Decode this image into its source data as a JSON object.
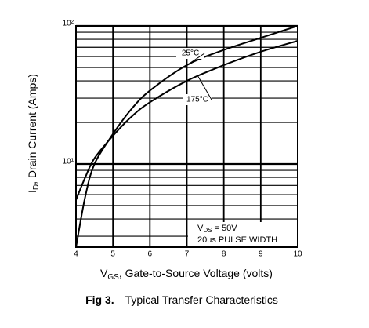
{
  "chart_data": {
    "type": "line",
    "log_y": true,
    "grid": true,
    "xlabel": [
      "V",
      "GS",
      ", Gate-to-Source Voltage (volts)"
    ],
    "ylabel": [
      "I",
      "D",
      ", Drain Current (Amps)"
    ],
    "caption": [
      "Fig 3.",
      "Typical Transfer Characteristics"
    ],
    "note": [
      "V",
      "DS",
      " = 50V",
      "20us PULSE WIDTH"
    ],
    "x": [
      4,
      4.25,
      4.5,
      5,
      5.5,
      6,
      7,
      8,
      9,
      10
    ],
    "series": [
      {
        "name": "25°C",
        "color": "#000000",
        "values": [
          2.5,
          5.8,
          10,
          16.5,
          25,
          34,
          52,
          67,
          82,
          100
        ]
      },
      {
        "name": "175°C",
        "color": "#000000",
        "values": [
          5.5,
          8,
          11,
          16,
          22,
          28,
          40,
          52,
          65,
          78
        ]
      }
    ],
    "xlim": [
      4,
      10
    ],
    "xticks": [
      4,
      5,
      6,
      7,
      8,
      9,
      10
    ],
    "ylim": [
      2.5,
      100
    ],
    "yticks": [
      {
        "value": 10,
        "label": "10¹"
      },
      {
        "value": 100,
        "label": "10²"
      }
    ]
  }
}
